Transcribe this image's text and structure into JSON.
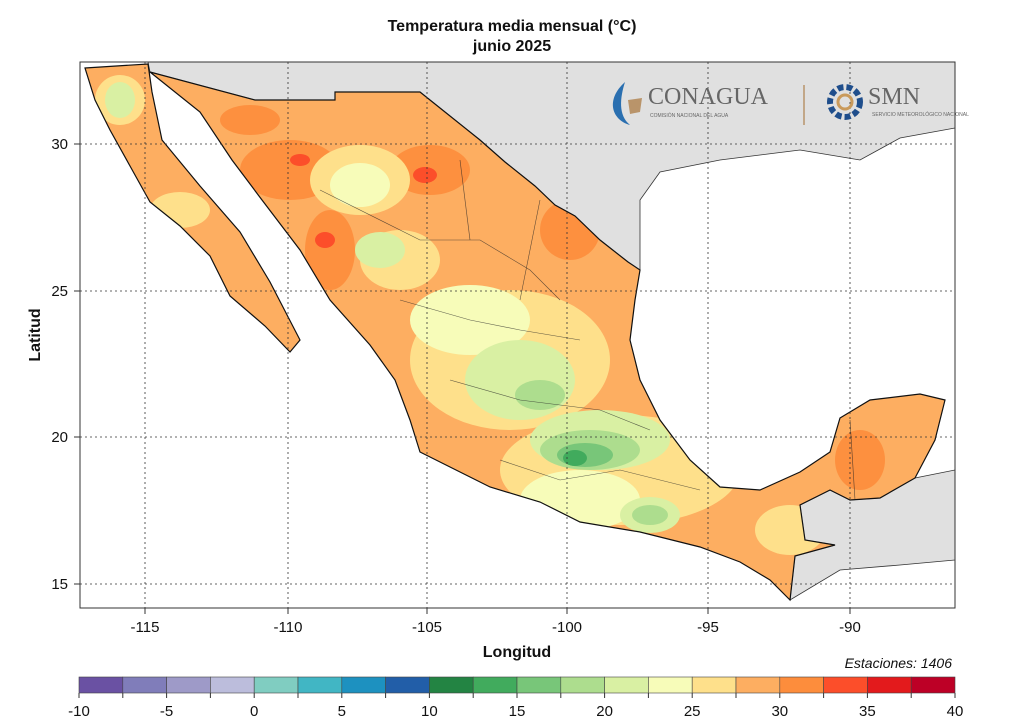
{
  "title": "Temperatura media mensual (°C)",
  "subtitle": "junio 2025",
  "xlabel": "Longitud",
  "ylabel": "Latitud",
  "x_ticks": [
    "-115",
    "-110",
    "-105",
    "-100",
    "-95",
    "-90"
  ],
  "y_ticks": [
    "30",
    "25",
    "20",
    "15"
  ],
  "stations_label": "Estaciones:",
  "stations_count": "1406",
  "logos": {
    "conagua": "CONAGUA",
    "conagua_sub": "COMISIÓN NACIONAL DEL AGUA",
    "smn": "SMN",
    "smn_sub": "SERVICIO METEOROLÓGICO NACIONAL"
  },
  "colorbar": {
    "ticks": [
      "-10",
      "-5",
      "0",
      "5",
      "10",
      "15",
      "20",
      "25",
      "30",
      "35",
      "40"
    ],
    "breaks": [
      -10,
      -7.5,
      -5,
      -2.5,
      0,
      2.5,
      5,
      7.5,
      10,
      12.5,
      15,
      17.5,
      20,
      22.5,
      25,
      27.5,
      30,
      32.5,
      35,
      37.5,
      40
    ],
    "colors": [
      "#6a51a3",
      "#807dba",
      "#9e9ac8",
      "#bcbddc",
      "#80cdc1",
      "#41b6c4",
      "#1d91c0",
      "#225ea8",
      "#238443",
      "#41ab5d",
      "#78c679",
      "#addd8e",
      "#d9f0a3",
      "#f7fcb9",
      "#fee08b",
      "#fdae61",
      "#fd8d3c",
      "#fc4e2a",
      "#e31a1c",
      "#bd0026"
    ]
  },
  "map": {
    "lon_range": [
      -117.3,
      -86.4
    ],
    "lat_range": [
      14.2,
      32.8
    ],
    "grid": "dotted",
    "land_outside": "#e0e0e0",
    "ocean": "#ffffff"
  }
}
